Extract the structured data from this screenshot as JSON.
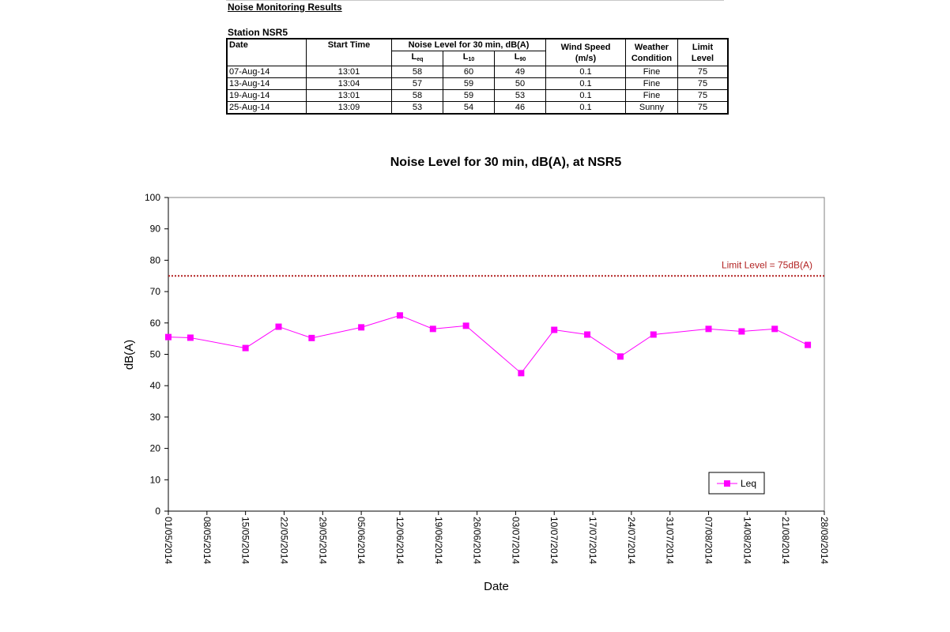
{
  "report": {
    "title": "Noise Monitoring Results",
    "station": "Station NSR5"
  },
  "table": {
    "headers": {
      "date": "Date",
      "start_time": "Start Time",
      "noise_group": "Noise Level for 30 min, dB(A)",
      "leq": "L",
      "leq_sub": "eq",
      "l10": "L",
      "l10_sub": "10",
      "l90": "L",
      "l90_sub": "90",
      "wind_1": "Wind Speed",
      "wind_2": "(m/s)",
      "weather_1": "Weather",
      "weather_2": "Condition",
      "limit_1": "Limit",
      "limit_2": "Level"
    },
    "rows": [
      {
        "date": "07-Aug-14",
        "time": "13:01",
        "leq": "58",
        "l10": "60",
        "l90": "49",
        "wind": "0.1",
        "weather": "Fine",
        "limit": "75"
      },
      {
        "date": "13-Aug-14",
        "time": "13:04",
        "leq": "57",
        "l10": "59",
        "l90": "50",
        "wind": "0.1",
        "weather": "Fine",
        "limit": "75"
      },
      {
        "date": "19-Aug-14",
        "time": "13:01",
        "leq": "58",
        "l10": "59",
        "l90": "53",
        "wind": "0.1",
        "weather": "Fine",
        "limit": "75"
      },
      {
        "date": "25-Aug-14",
        "time": "13:09",
        "leq": "53",
        "l10": "54",
        "l90": "46",
        "wind": "0.1",
        "weather": "Sunny",
        "limit": "75"
      }
    ]
  },
  "chart_data": {
    "type": "line",
    "title": "Noise Level for 30 min, dB(A), at NSR5",
    "xlabel": "Date",
    "ylabel": "dB(A)",
    "ylim": [
      0,
      100
    ],
    "yticks": [
      0,
      10,
      20,
      30,
      40,
      50,
      60,
      70,
      80,
      90,
      100
    ],
    "xlim": [
      "2014-05-01",
      "2014-08-28"
    ],
    "xtick_labels": [
      "01/05/2014",
      "08/05/2014",
      "15/05/2014",
      "22/05/2014",
      "29/05/2014",
      "05/06/2014",
      "12/06/2014",
      "19/06/2014",
      "26/06/2014",
      "03/07/2014",
      "10/07/2014",
      "17/07/2014",
      "24/07/2014",
      "31/07/2014",
      "07/08/2014",
      "14/08/2014",
      "21/08/2014",
      "28/08/2014"
    ],
    "grid": false,
    "legend": "bottom-right",
    "series": [
      {
        "name": "Leq",
        "color": "#ff00ff",
        "points": [
          {
            "x": "2014-05-01",
            "y": 55.5
          },
          {
            "x": "2014-05-05",
            "y": 55.3
          },
          {
            "x": "2014-05-15",
            "y": 52
          },
          {
            "x": "2014-05-21",
            "y": 58.8
          },
          {
            "x": "2014-05-27",
            "y": 55.2
          },
          {
            "x": "2014-06-05",
            "y": 58.6
          },
          {
            "x": "2014-06-12",
            "y": 62.4
          },
          {
            "x": "2014-06-18",
            "y": 58.1
          },
          {
            "x": "2014-06-24",
            "y": 59.1
          },
          {
            "x": "2014-07-04",
            "y": 44
          },
          {
            "x": "2014-07-10",
            "y": 57.8
          },
          {
            "x": "2014-07-16",
            "y": 56.3
          },
          {
            "x": "2014-07-22",
            "y": 49.3
          },
          {
            "x": "2014-07-28",
            "y": 56.3
          },
          {
            "x": "2014-08-07",
            "y": 58.1
          },
          {
            "x": "2014-08-13",
            "y": 57.3
          },
          {
            "x": "2014-08-19",
            "y": 58.1
          },
          {
            "x": "2014-08-25",
            "y": 53
          }
        ]
      }
    ],
    "limit_line": {
      "value": 75,
      "label": "Limit Level  = 75dB(A)",
      "color": "#b22222"
    }
  }
}
